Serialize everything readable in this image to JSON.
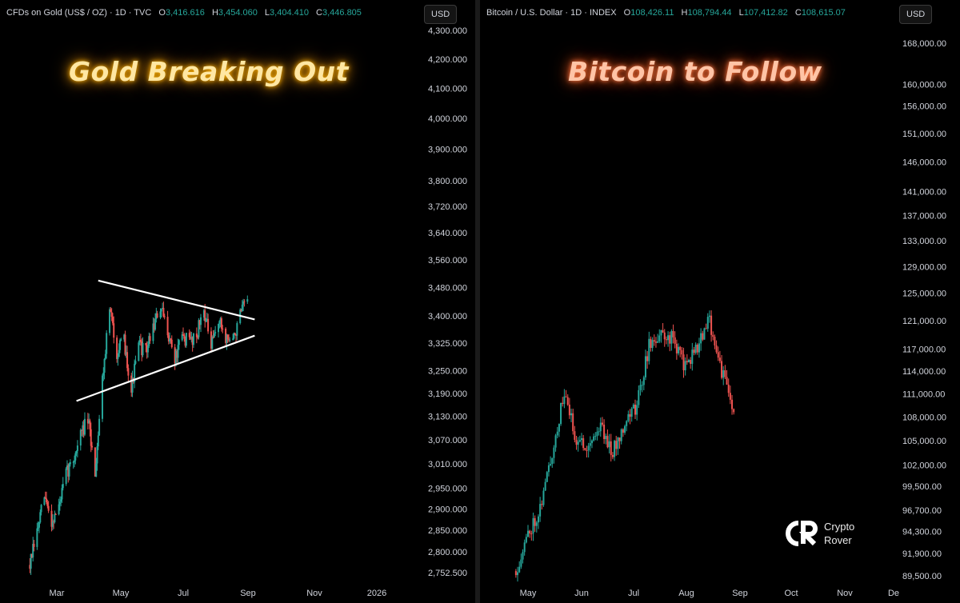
{
  "gold": {
    "legend": {
      "name": "CFDs on Gold (US$ / OZ) · 1D · TVC",
      "o_label": "O",
      "o": "3,416.616",
      "h_label": "H",
      "h": "3,454.060",
      "l_label": "L",
      "l": "3,404.410",
      "c_label": "C",
      "c": "3,446.805"
    },
    "currency": "USD",
    "headline": "Gold Breaking Out"
  },
  "btc": {
    "legend": {
      "name": "Bitcoin / U.S. Dollar · 1D · INDEX",
      "o_label": "O",
      "o": "108,426.11",
      "h_label": "H",
      "h": "108,794.44",
      "l_label": "L",
      "l": "107,412.82",
      "c_label": "C",
      "c": "108,615.07"
    },
    "currency": "USD",
    "headline": "Bitcoin to Follow"
  },
  "logo": {
    "line1": "Crypto",
    "line2": "Rover"
  },
  "colors": {
    "up": "#26a69a",
    "down": "#ef5350",
    "trendline": "#ffffff"
  },
  "chart_data": [
    {
      "type": "candlestick",
      "series_name": "CFDs on Gold (US$ / OZ)",
      "x_ticks": [
        "Mar",
        "May",
        "Jul",
        "Sep",
        "Nov",
        "2026"
      ],
      "y_ticks": [
        "4,300.000",
        "4,200.000",
        "4,100.000",
        "4,000.000",
        "3,900.000",
        "3,800.000",
        "3,720.000",
        "3,640.000",
        "3,560.000",
        "3,480.000",
        "3,400.000",
        "3,325.000",
        "3,250.000",
        "3,190.000",
        "3,130.000",
        "3,070.000",
        "3,010.000",
        "2,950.000",
        "2,900.000",
        "2,850.000",
        "2,800.000",
        "2,752.500"
      ],
      "y_tick_values": [
        4300,
        4200,
        4100,
        4000,
        3900,
        3800,
        3720,
        3640,
        3560,
        3480,
        3400,
        3325,
        3250,
        3190,
        3130,
        3070,
        3010,
        2950,
        2900,
        2850,
        2800,
        2752.5
      ],
      "scale": "log",
      "close_path": [
        [
          "2025-02-03",
          2770
        ],
        [
          "2025-02-10",
          2845
        ],
        [
          "2025-02-17",
          2930
        ],
        [
          "2025-02-24",
          2870
        ],
        [
          "2025-03-03",
          2905
        ],
        [
          "2025-03-10",
          2985
        ],
        [
          "2025-03-17",
          3020
        ],
        [
          "2025-03-24",
          3085
        ],
        [
          "2025-03-31",
          3120
        ],
        [
          "2025-04-07",
          2990
        ],
        [
          "2025-04-14",
          3230
        ],
        [
          "2025-04-21",
          3420
        ],
        [
          "2025-04-28",
          3300
        ],
        [
          "2025-05-05",
          3330
        ],
        [
          "2025-05-12",
          3200
        ],
        [
          "2025-05-19",
          3320
        ],
        [
          "2025-05-26",
          3300
        ],
        [
          "2025-06-02",
          3370
        ],
        [
          "2025-06-09",
          3420
        ],
        [
          "2025-06-16",
          3360
        ],
        [
          "2025-06-23",
          3280
        ],
        [
          "2025-06-30",
          3340
        ],
        [
          "2025-07-07",
          3330
        ],
        [
          "2025-07-14",
          3350
        ],
        [
          "2025-07-21",
          3420
        ],
        [
          "2025-07-28",
          3310
        ],
        [
          "2025-08-04",
          3390
        ],
        [
          "2025-08-11",
          3340
        ],
        [
          "2025-08-18",
          3330
        ],
        [
          "2025-08-25",
          3400
        ],
        [
          "2025-09-01",
          3447
        ]
      ],
      "trendlines": [
        {
          "from": [
            "2025-04-10",
            3500
          ],
          "to": [
            "2025-09-08",
            3390
          ]
        },
        {
          "from": [
            "2025-03-20",
            3170
          ],
          "to": [
            "2025-09-08",
            3345
          ]
        }
      ]
    },
    {
      "type": "candlestick",
      "series_name": "Bitcoin / U.S. Dollar",
      "x_ticks": [
        "May",
        "Jun",
        "Jul",
        "Aug",
        "Sep",
        "Oct",
        "Nov",
        "De"
      ],
      "y_ticks": [
        "168,000.00",
        "160,000.00",
        "156,000.00",
        "151,000.00",
        "146,000.00",
        "141,000.00",
        "137,000.00",
        "133,000.00",
        "129,000.00",
        "125,000.00",
        "121,000.00",
        "117,000.00",
        "114,000.00",
        "111,000.00",
        "108,000.00",
        "105,000.00",
        "102,000.00",
        "99,500.00",
        "96,700.00",
        "94,300.00",
        "91,900.00",
        "89,500.00"
      ],
      "y_tick_values": [
        168000,
        160000,
        156000,
        151000,
        146000,
        141000,
        137000,
        133000,
        129000,
        125000,
        121000,
        117000,
        114000,
        111000,
        108000,
        105000,
        102000,
        99500,
        96700,
        94300,
        91900,
        89500
      ],
      "scale": "log",
      "close_path": [
        [
          "2025-04-24",
          90000
        ],
        [
          "2025-05-01",
          94000
        ],
        [
          "2025-05-08",
          97000
        ],
        [
          "2025-05-15",
          103500
        ],
        [
          "2025-05-22",
          111000
        ],
        [
          "2025-05-29",
          105000
        ],
        [
          "2025-06-05",
          104500
        ],
        [
          "2025-06-12",
          107000
        ],
        [
          "2025-06-19",
          103500
        ],
        [
          "2025-06-26",
          107500
        ],
        [
          "2025-07-03",
          109500
        ],
        [
          "2025-07-10",
          117500
        ],
        [
          "2025-07-17",
          119000
        ],
        [
          "2025-07-24",
          118500
        ],
        [
          "2025-07-31",
          114500
        ],
        [
          "2025-08-07",
          117500
        ],
        [
          "2025-08-14",
          121000
        ],
        [
          "2025-08-21",
          114000
        ],
        [
          "2025-08-28",
          108600
        ]
      ]
    }
  ]
}
